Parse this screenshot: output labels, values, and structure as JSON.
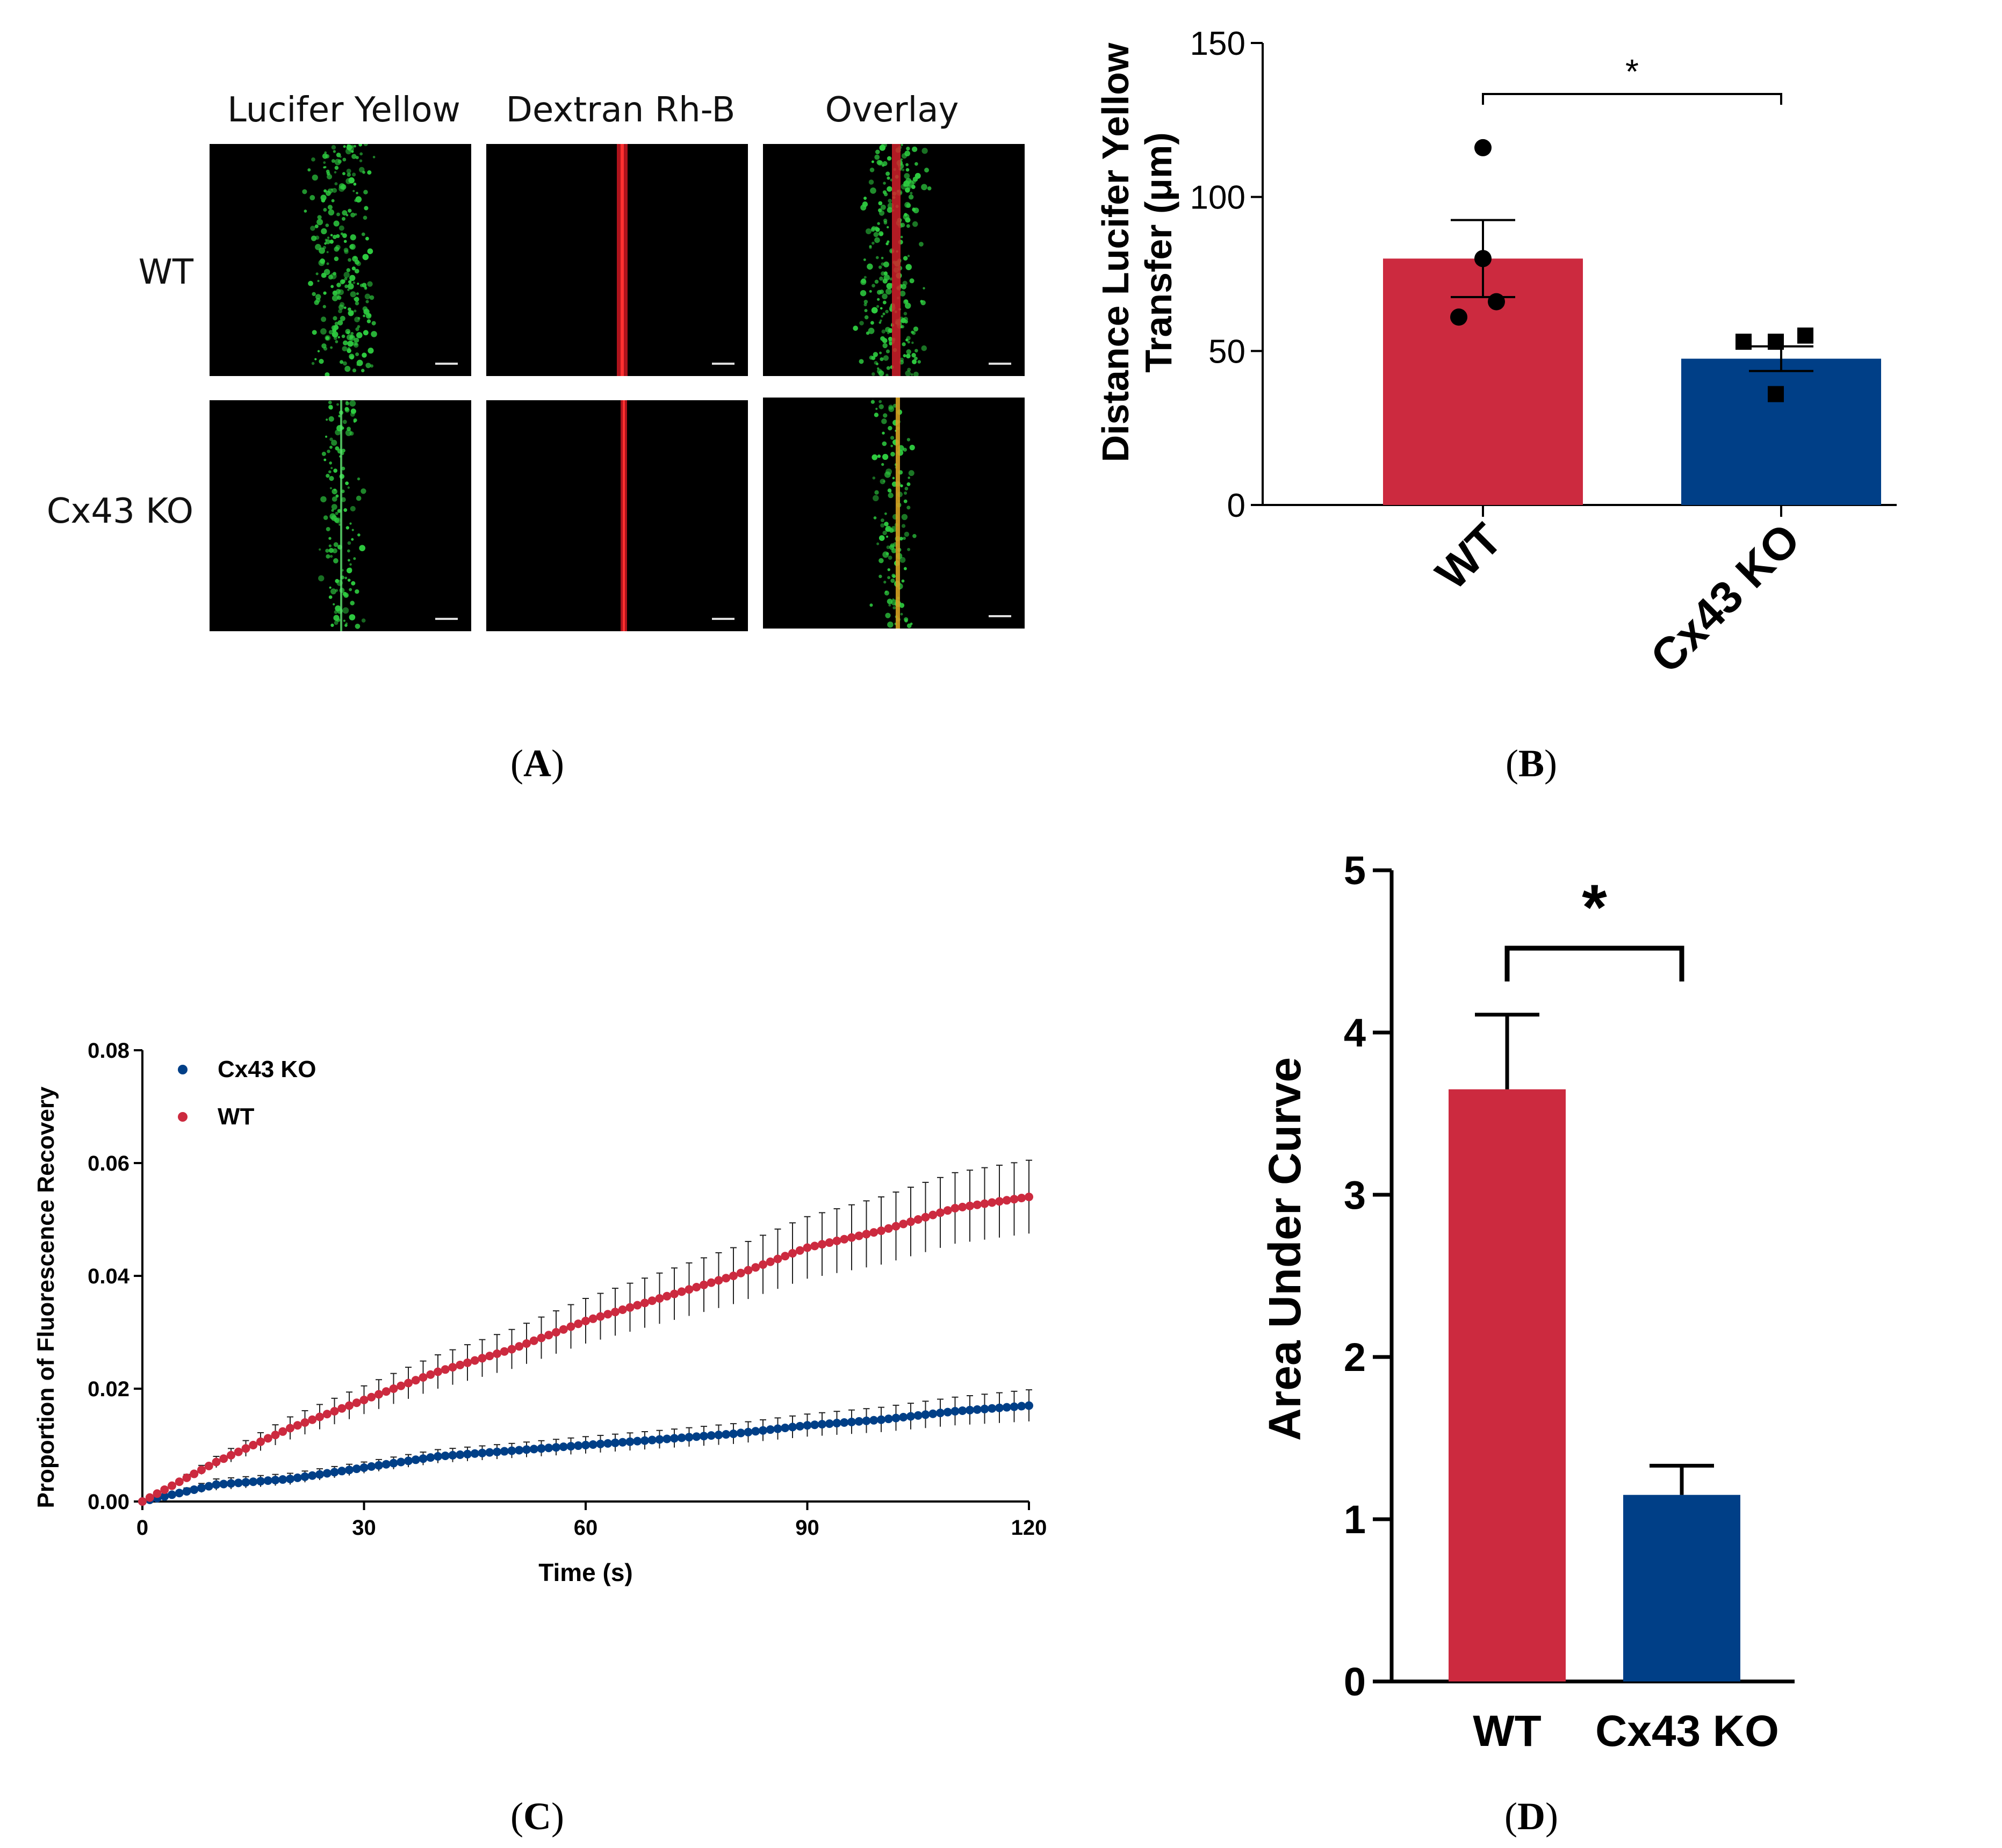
{
  "panel_a": {
    "caption": "A",
    "columns": [
      "Lucifer Yellow",
      "Dextran Rh-B",
      "Overlay"
    ],
    "rows": [
      "WT",
      "Cx43 KO"
    ]
  },
  "captions": {
    "b": "B",
    "c": "C",
    "d": "D"
  },
  "colors": {
    "wt": "#cc2a3f",
    "ko": "#003f87",
    "lucifer": "#2ecc40",
    "dextran": "#d0202a"
  },
  "chart_data": [
    {
      "panel": "B",
      "type": "bar",
      "categories": [
        "WT",
        "Cx43 KO"
      ],
      "values": [
        80,
        47.5
      ],
      "errors": [
        12.5,
        4
      ],
      "points": [
        [
          116,
          80,
          61,
          66
        ],
        [
          53,
          53,
          55,
          36
        ]
      ],
      "ylabel": "Distance Lucifer Yellow Transfer (μm)",
      "ylim": [
        0,
        150
      ],
      "yticks": [
        0,
        50,
        100,
        150
      ],
      "significance": "*"
    },
    {
      "panel": "C",
      "type": "scatter",
      "xlabel": "Time (s)",
      "ylabel": "Proportion of Fluorescence Recovery",
      "xlim": [
        0,
        120
      ],
      "ylim": [
        0,
        0.08
      ],
      "xticks": [
        0,
        30,
        60,
        90,
        120
      ],
      "yticks": [
        "0.00",
        "0.02",
        "0.04",
        "0.06",
        "0.08"
      ],
      "legend": {
        "placement": "top-left"
      },
      "series": [
        {
          "name": "Cx43 KO",
          "color": "#003f87",
          "x": [
            0,
            10,
            20,
            30,
            40,
            50,
            60,
            70,
            80,
            90,
            100,
            110,
            120
          ],
          "y": [
            0,
            0.003,
            0.004,
            0.006,
            0.008,
            0.009,
            0.01,
            0.011,
            0.012,
            0.0135,
            0.0145,
            0.016,
            0.017
          ],
          "err": [
            0,
            0.001,
            0.001,
            0.001,
            0.0012,
            0.0013,
            0.0015,
            0.0016,
            0.0018,
            0.002,
            0.0022,
            0.0025,
            0.0028
          ]
        },
        {
          "name": "WT",
          "color": "#cc2a3f",
          "x": [
            0,
            10,
            20,
            30,
            40,
            50,
            60,
            70,
            80,
            90,
            100,
            110,
            120
          ],
          "y": [
            0,
            0.007,
            0.013,
            0.018,
            0.023,
            0.027,
            0.032,
            0.036,
            0.04,
            0.045,
            0.048,
            0.052,
            0.054
          ],
          "err": [
            0,
            0.001,
            0.002,
            0.0025,
            0.003,
            0.0035,
            0.004,
            0.0045,
            0.005,
            0.0055,
            0.006,
            0.0063,
            0.0065
          ]
        }
      ]
    },
    {
      "panel": "D",
      "type": "bar",
      "categories": [
        "WT",
        "Cx43 KO"
      ],
      "values": [
        3.65,
        1.15
      ],
      "errors": [
        0.46,
        0.18
      ],
      "ylabel": "Area Under Curve",
      "ylim": [
        0,
        5
      ],
      "yticks": [
        0,
        1,
        2,
        3,
        4,
        5
      ],
      "significance": "*"
    }
  ]
}
